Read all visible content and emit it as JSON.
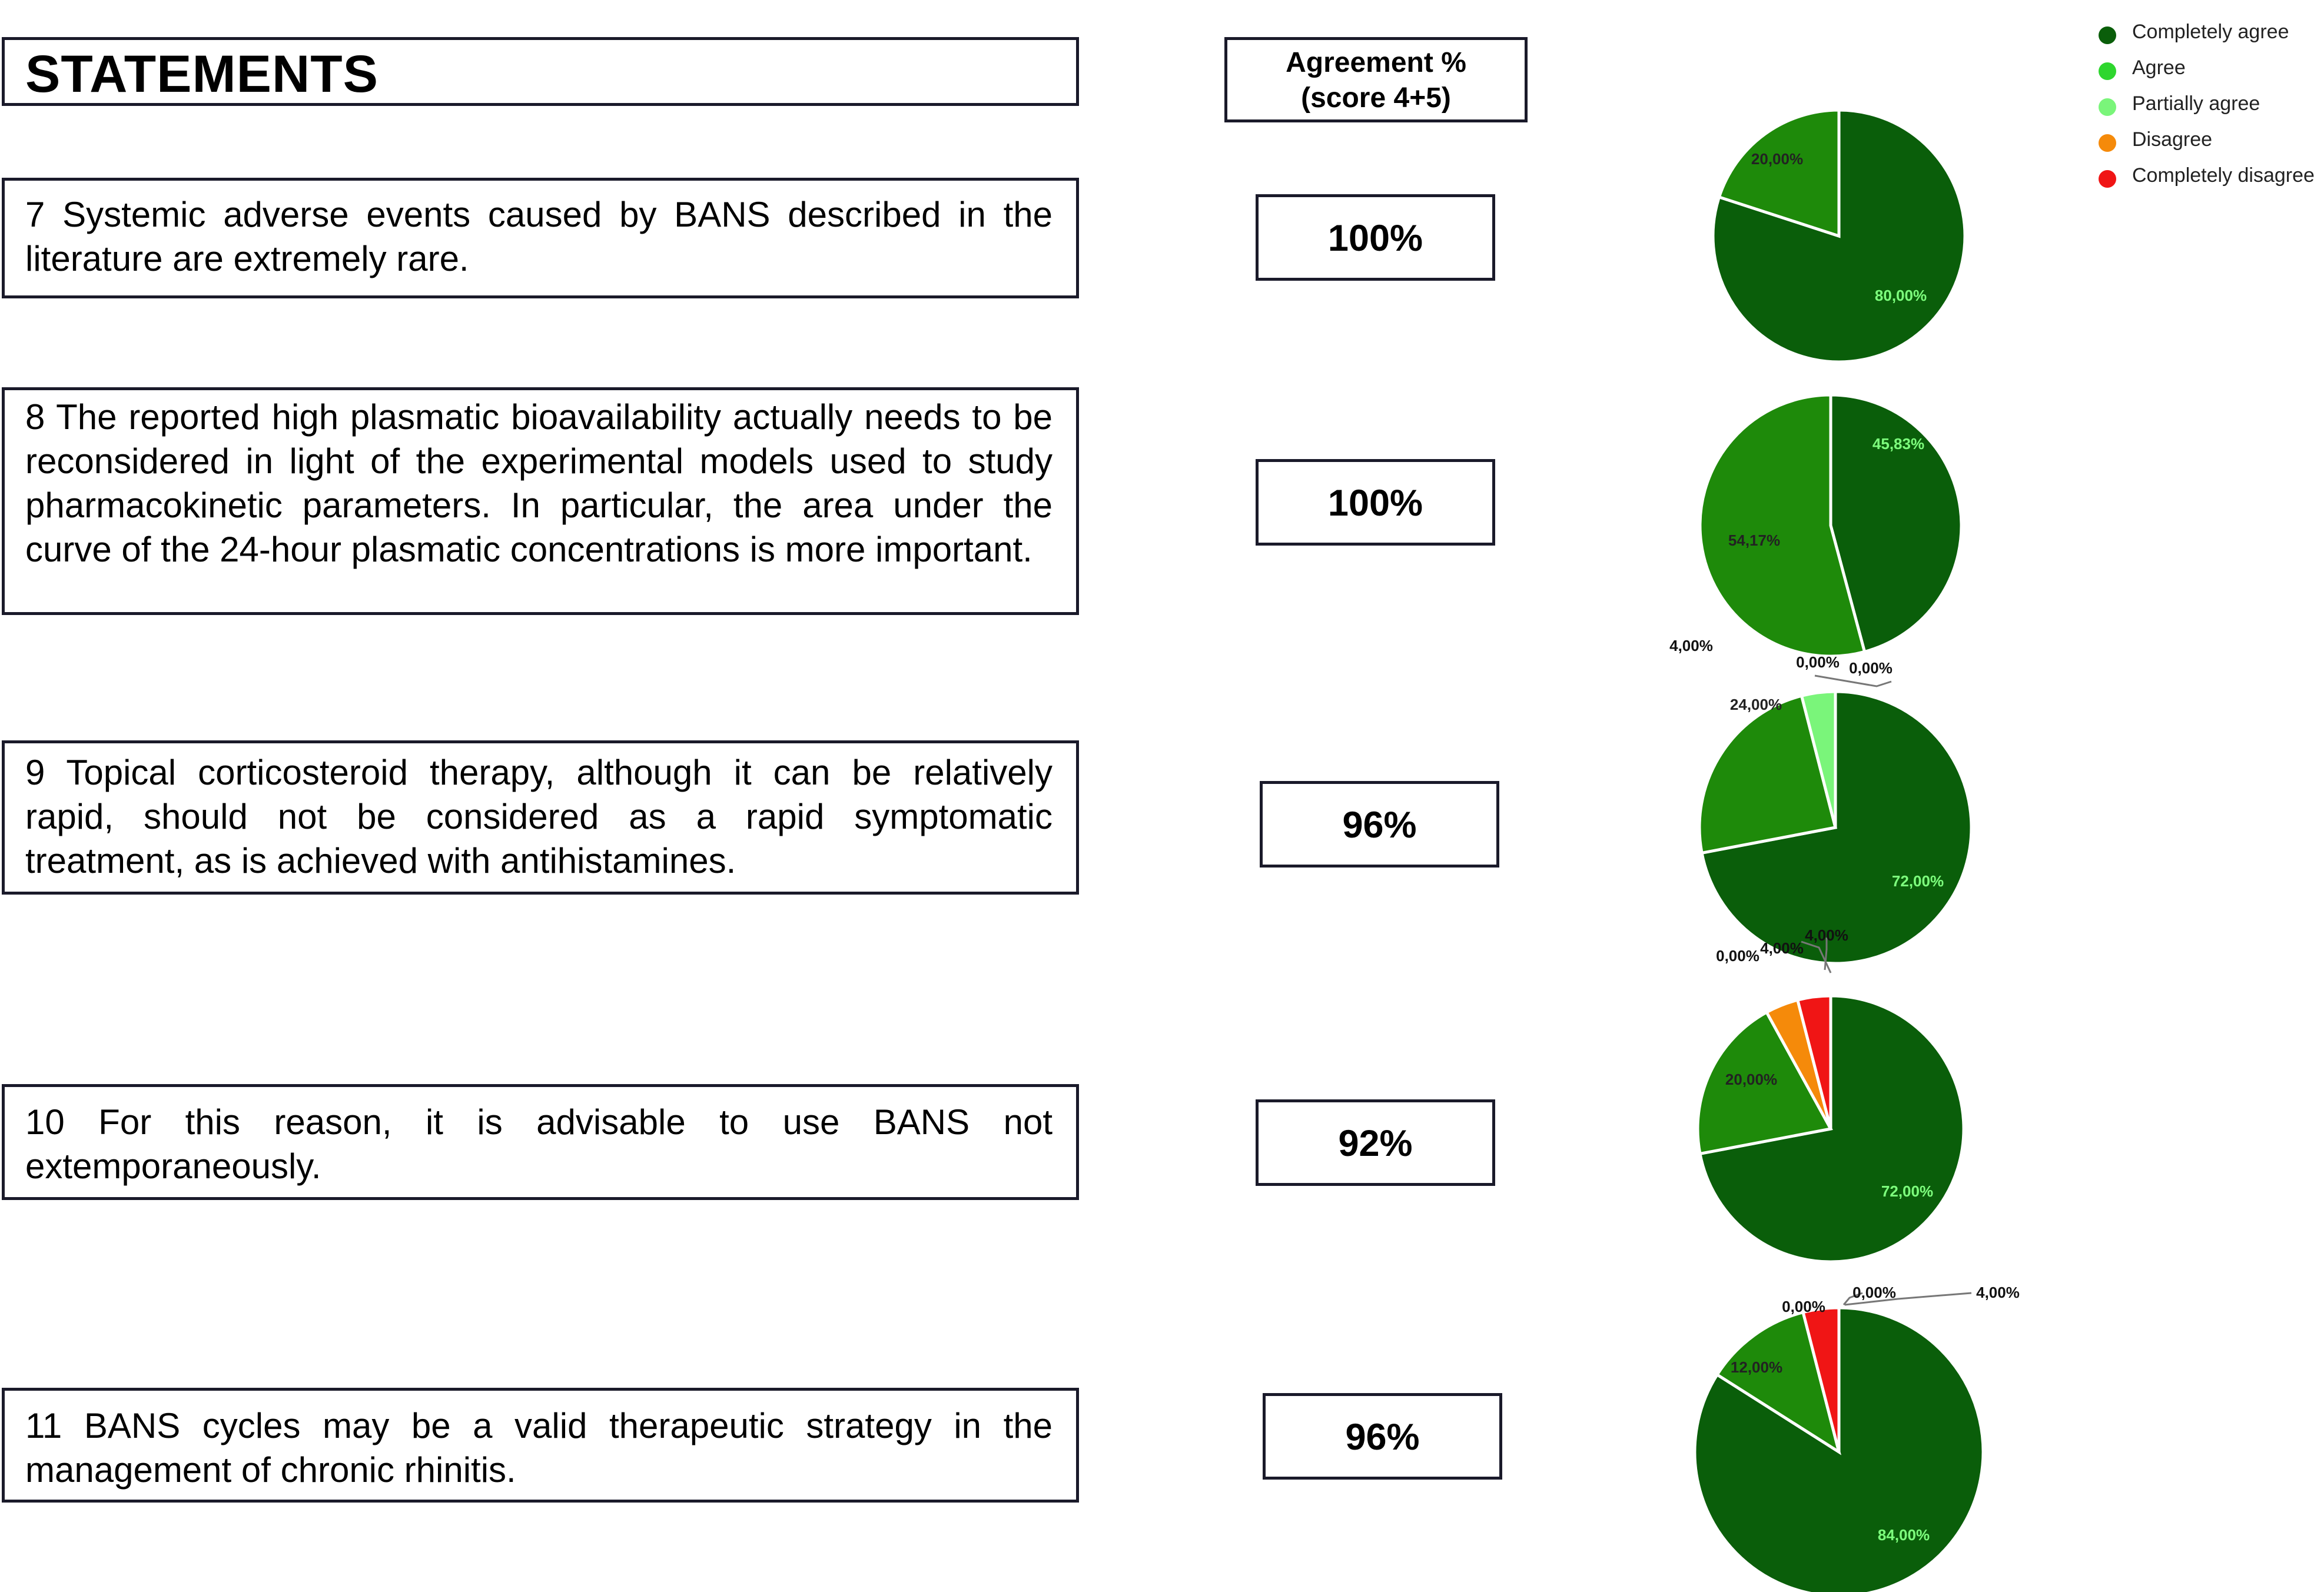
{
  "header": {
    "statements_title": "STATEMENTS",
    "agreement_line1": "Agreement %",
    "agreement_line2": "(score 4+5)"
  },
  "statements": [
    {
      "text": "7 Systemic adverse events caused by BANS described in the literature are extremely rare.",
      "agreement": "100%"
    },
    {
      "text": "8 The reported high plasmatic bioavailability actually needs to be reconsidered in light of the experimental models used to study pharmacokinetic parameters. In particular, the area under the curve of the 24-hour plasmatic concentrations is more important.",
      "agreement": "100%"
    },
    {
      "text": "9 Topical corticosteroid therapy, although it can be relatively rapid, should not be considered as a rapid symptomatic treatment, as is achieved with antihistamines.",
      "agreement": "96%"
    },
    {
      "text": "10 For this reason, it is advisable to use BANS not extemporaneously.",
      "agreement": "92%"
    },
    {
      "text": "11 BANS cycles may be a valid therapeutic strategy in the management of chronic rhinitis.",
      "agreement": "96%"
    }
  ],
  "legend": {
    "position": "top-right",
    "items": [
      {
        "label": "Completely agree",
        "color": "#0a5e0a"
      },
      {
        "label": "Agree",
        "color": "#2ed62e"
      },
      {
        "label": "Partially agree",
        "color": "#7af57a"
      },
      {
        "label": "Disagree",
        "color": "#f58a0a"
      },
      {
        "label": "Completely disagree",
        "color": "#f01515"
      }
    ]
  },
  "chart_data": [
    {
      "type": "pie",
      "statement": "7",
      "slices": [
        {
          "label": "80,00%",
          "value": 80,
          "color": "#0a5e0a"
        },
        {
          "label": "20,00%",
          "value": 20,
          "color": "#1e8a0a"
        }
      ]
    },
    {
      "type": "pie",
      "statement": "8",
      "slices": [
        {
          "label": "45,83%",
          "value": 45.83,
          "color": "#0a5e0a"
        },
        {
          "label": "54,17%",
          "value": 54.17,
          "color": "#1e8a0a"
        }
      ]
    },
    {
      "type": "pie",
      "statement": "9",
      "slices": [
        {
          "label": "72,00%",
          "value": 72,
          "color": "#0a5e0a"
        },
        {
          "label": "24,00%",
          "value": 24,
          "color": "#1e8a0a"
        },
        {
          "label": "4,00%",
          "value": 4,
          "color": "#7af57a"
        },
        {
          "label": "0,00%",
          "value": 0,
          "color": "#f58a0a"
        },
        {
          "label": "0,00%",
          "value": 0,
          "color": "#f01515"
        }
      ]
    },
    {
      "type": "pie",
      "statement": "10",
      "slices": [
        {
          "label": "72,00%",
          "value": 72,
          "color": "#0a5e0a"
        },
        {
          "label": "20,00%",
          "value": 20,
          "color": "#1e8a0a"
        },
        {
          "label": "0,00%",
          "value": 0,
          "color": "#7af57a"
        },
        {
          "label": "4,00%",
          "value": 4,
          "color": "#f58a0a"
        },
        {
          "label": "4,00%",
          "value": 4,
          "color": "#f01515"
        }
      ]
    },
    {
      "type": "pie",
      "statement": "11",
      "slices": [
        {
          "label": "84,00%",
          "value": 84,
          "color": "#0a5e0a"
        },
        {
          "label": "12,00%",
          "value": 12,
          "color": "#1e8a0a"
        },
        {
          "label": "0,00%",
          "value": 0,
          "color": "#7af57a"
        },
        {
          "label": "0,00%",
          "value": 0,
          "color": "#f58a0a"
        },
        {
          "label": "4,00%",
          "value": 4,
          "color": "#f01515"
        }
      ]
    }
  ]
}
